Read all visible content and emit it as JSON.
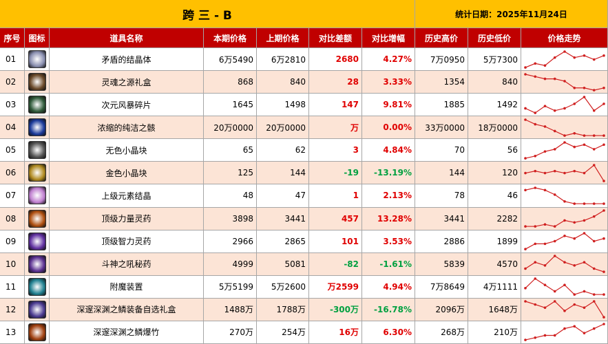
{
  "title": "跨 三 - B",
  "date": "统计日期：2025年11月24日",
  "headers": [
    "序号",
    "图标",
    "道具名称",
    "本期价格",
    "上期价格",
    "对比差额",
    "对比增幅",
    "历史高价",
    "历史低价",
    "价格走势"
  ],
  "rows": [
    {
      "no": "01",
      "name": "矛盾的结晶体",
      "cur": "6万5490",
      "prev": "6万2810",
      "diff": "2680",
      "pct": "4.27%",
      "high": "7万0950",
      "low": "5万7300",
      "trend": [
        1,
        3,
        2,
        6,
        9,
        6,
        7,
        5,
        7
      ]
    },
    {
      "no": "02",
      "name": "灵魂之源礼盒",
      "cur": "868",
      "prev": "840",
      "diff": "28",
      "pct": "3.33%",
      "high": "1354",
      "low": "840",
      "trend": [
        9,
        8,
        7,
        7,
        6,
        3,
        3,
        2,
        3
      ]
    },
    {
      "no": "03",
      "name": "次元风暴碎片",
      "cur": "1645",
      "prev": "1498",
      "diff": "147",
      "pct": "9.81%",
      "high": "1885",
      "low": "1492",
      "trend": [
        3,
        1,
        4,
        2,
        3,
        5,
        8,
        2,
        5
      ]
    },
    {
      "no": "04",
      "name": "浓缩的纯洁之骸",
      "cur": "20万0000",
      "prev": "20万0000",
      "diff": "万",
      "pct": "0.00%",
      "high": "33万0000",
      "low": "18万0000",
      "trend": [
        9,
        7,
        6,
        4,
        2,
        3,
        2,
        2,
        2
      ]
    },
    {
      "no": "05",
      "name": "无色小晶块",
      "cur": "65",
      "prev": "62",
      "diff": "3",
      "pct": "4.84%",
      "high": "70",
      "low": "56",
      "trend": [
        1,
        2,
        4,
        5,
        8,
        6,
        7,
        5,
        7
      ]
    },
    {
      "no": "06",
      "name": "金色小晶块",
      "cur": "125",
      "prev": "144",
      "diff": "-19",
      "pct": "-13.19%",
      "high": "144",
      "low": "120",
      "trend": [
        5,
        6,
        5,
        6,
        5,
        6,
        5,
        9,
        1
      ]
    },
    {
      "no": "07",
      "name": "上级元素结晶",
      "cur": "48",
      "prev": "47",
      "diff": "1",
      "pct": "2.13%",
      "high": "78",
      "low": "46",
      "trend": [
        7,
        8,
        7,
        5,
        2,
        1,
        1,
        1,
        1
      ]
    },
    {
      "no": "08",
      "name": "顶级力量灵药",
      "cur": "3898",
      "prev": "3441",
      "diff": "457",
      "pct": "13.28%",
      "high": "3441",
      "low": "2282",
      "trend": [
        1,
        1,
        2,
        1,
        4,
        3,
        4,
        6,
        9
      ]
    },
    {
      "no": "09",
      "name": "顶级智力灵药",
      "cur": "2966",
      "prev": "2865",
      "diff": "101",
      "pct": "3.53%",
      "high": "2886",
      "low": "1899",
      "trend": [
        1,
        3,
        3,
        4,
        6,
        5,
        7,
        4,
        5
      ]
    },
    {
      "no": "10",
      "name": "斗神之吼秘药",
      "cur": "4999",
      "prev": "5081",
      "diff": "-82",
      "pct": "-1.61%",
      "high": "5839",
      "low": "4570",
      "trend": [
        4,
        6,
        5,
        8,
        6,
        5,
        6,
        4,
        3
      ]
    },
    {
      "no": "11",
      "name": "附魔装置",
      "cur": "5万5199",
      "prev": "5万2600",
      "diff": "万2599",
      "pct": "4.94%",
      "high": "7万8649",
      "low": "4万1111",
      "trend": [
        5,
        8,
        6,
        4,
        6,
        3,
        4,
        3,
        3
      ]
    },
    {
      "no": "12",
      "name": "深邃深渊之鳞装备自选礼盒",
      "cur": "1488万",
      "prev": "1788万",
      "diff": "-300万",
      "pct": "-16.78%",
      "high": "2096万",
      "low": "1648万",
      "trend": [
        7,
        6,
        5,
        7,
        4,
        6,
        5,
        7,
        2
      ]
    },
    {
      "no": "13",
      "name": "深邃深渊之鳞爆竹",
      "cur": "270万",
      "prev": "254万",
      "diff": "16万",
      "pct": "6.30%",
      "high": "268万",
      "low": "210万",
      "trend": [
        1,
        2,
        3,
        3,
        6,
        7,
        4,
        6,
        8
      ]
    }
  ]
}
